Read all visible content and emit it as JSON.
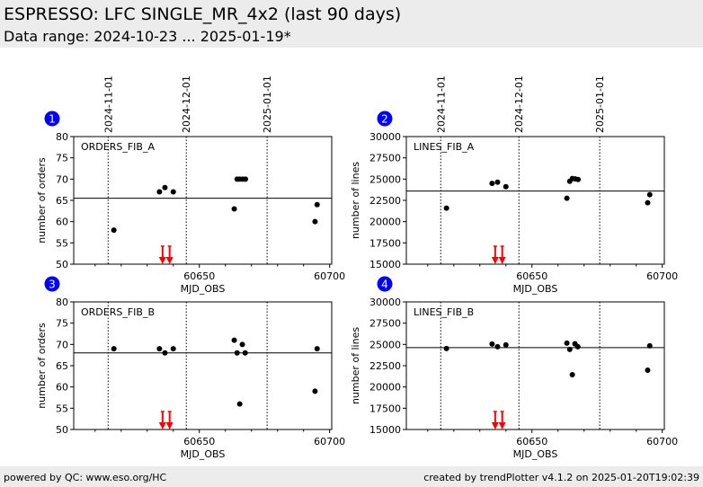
{
  "header": {
    "title": "ESPRESSO: LFC SINGLE_MR_4x2 (last 90 days)",
    "subtitle": "Data range: 2024-10-23 ... 2025-01-19*"
  },
  "footer": {
    "left": "powered by QC: www.eso.org/HC",
    "right": "created by trendPlotter v4.1.2 on 2025-01-20T19:02:39"
  },
  "colors": {
    "badge": "#0000ff",
    "marker": "#000000",
    "event": "#ff0000",
    "header_bg": "#ececec"
  },
  "chart_data": [
    {
      "type": "scatter",
      "index": "1",
      "title": "ORDERS_FIB_A",
      "xlabel": "MJD_OBS",
      "ylabel": "number of orders",
      "xlim": [
        60601.8,
        60700.8
      ],
      "ylim": [
        50,
        80
      ],
      "yticks": [
        "50",
        "55",
        "60",
        "65",
        "70",
        "75",
        "80"
      ],
      "xticks": [
        "60650",
        "60700"
      ],
      "date_lines": [
        {
          "mjd": 60615,
          "label": "2024-11-01"
        },
        {
          "mjd": 60645,
          "label": "2024-12-01"
        },
        {
          "mjd": 60676,
          "label": "2025-01-01"
        }
      ],
      "reference": 65.5,
      "events": [
        60635.9,
        60638.6
      ],
      "x": [
        60617.2,
        60634.7,
        60636.8,
        60640.0,
        60663.4,
        60664.5,
        60665.5,
        60666.6,
        60667.7,
        60694.4,
        60695.2
      ],
      "y": [
        58,
        67,
        68,
        67,
        63,
        70,
        70,
        70,
        70,
        60,
        64
      ]
    },
    {
      "type": "scatter",
      "index": "2",
      "title": "LINES_FIB_A",
      "xlabel": "MJD_OBS",
      "ylabel": "number of lines",
      "xlim": [
        60601.8,
        60700.8
      ],
      "ylim": [
        15000,
        30000
      ],
      "yticks": [
        "15000",
        "17500",
        "20000",
        "22500",
        "25000",
        "27500",
        "30000"
      ],
      "xticks": [
        "60650",
        "60700"
      ],
      "date_lines": [
        {
          "mjd": 60615,
          "label": "2024-11-01"
        },
        {
          "mjd": 60645,
          "label": "2024-12-01"
        },
        {
          "mjd": 60676,
          "label": "2025-01-01"
        }
      ],
      "reference": 23590,
      "events": [
        60635.9,
        60638.6
      ],
      "x": [
        60617.2,
        60634.7,
        60636.8,
        60640.0,
        60663.4,
        60664.5,
        60665.5,
        60666.6,
        60667.7,
        60694.4,
        60695.2
      ],
      "y": [
        21590,
        24500,
        24640,
        24110,
        22750,
        24740,
        25060,
        25020,
        24950,
        22220,
        23170
      ]
    },
    {
      "type": "scatter",
      "index": "3",
      "title": "ORDERS_FIB_B",
      "xlabel": "MJD_OBS",
      "ylabel": "number of orders",
      "xlim": [
        60601.8,
        60700.8
      ],
      "ylim": [
        50,
        80
      ],
      "yticks": [
        "50",
        "55",
        "60",
        "65",
        "70",
        "75",
        "80"
      ],
      "xticks": [
        "60650",
        "60700"
      ],
      "date_lines": [
        {
          "mjd": 60615,
          "label": ""
        },
        {
          "mjd": 60645,
          "label": ""
        },
        {
          "mjd": 60676,
          "label": ""
        }
      ],
      "reference": 68,
      "events": [
        60635.9,
        60638.6
      ],
      "x": [
        60617.2,
        60634.7,
        60636.8,
        60640.0,
        60663.4,
        60664.5,
        60665.5,
        60666.5,
        60667.6,
        60694.4,
        60695.2
      ],
      "y": [
        69,
        69,
        68,
        69,
        71,
        68,
        56,
        70,
        68,
        59,
        69
      ]
    },
    {
      "type": "scatter",
      "index": "4",
      "title": "LINES_FIB_B",
      "xlabel": "MJD_OBS",
      "ylabel": "number of lines",
      "xlim": [
        60601.8,
        60700.8
      ],
      "ylim": [
        15000,
        30000
      ],
      "yticks": [
        "15000",
        "17500",
        "20000",
        "22500",
        "25000",
        "27500",
        "30000"
      ],
      "xticks": [
        "60650",
        "60700"
      ],
      "date_lines": [
        {
          "mjd": 60615,
          "label": ""
        },
        {
          "mjd": 60645,
          "label": ""
        },
        {
          "mjd": 60676,
          "label": ""
        }
      ],
      "reference": 24620,
      "events": [
        60635.9,
        60638.6
      ],
      "x": [
        60617.2,
        60634.7,
        60636.8,
        60640.0,
        60663.4,
        60664.5,
        60665.5,
        60666.5,
        60667.6,
        60694.4,
        60695.2
      ],
      "y": [
        24520,
        25050,
        24730,
        24940,
        25150,
        24410,
        21440,
        25080,
        24730,
        21970,
        24840
      ]
    }
  ]
}
